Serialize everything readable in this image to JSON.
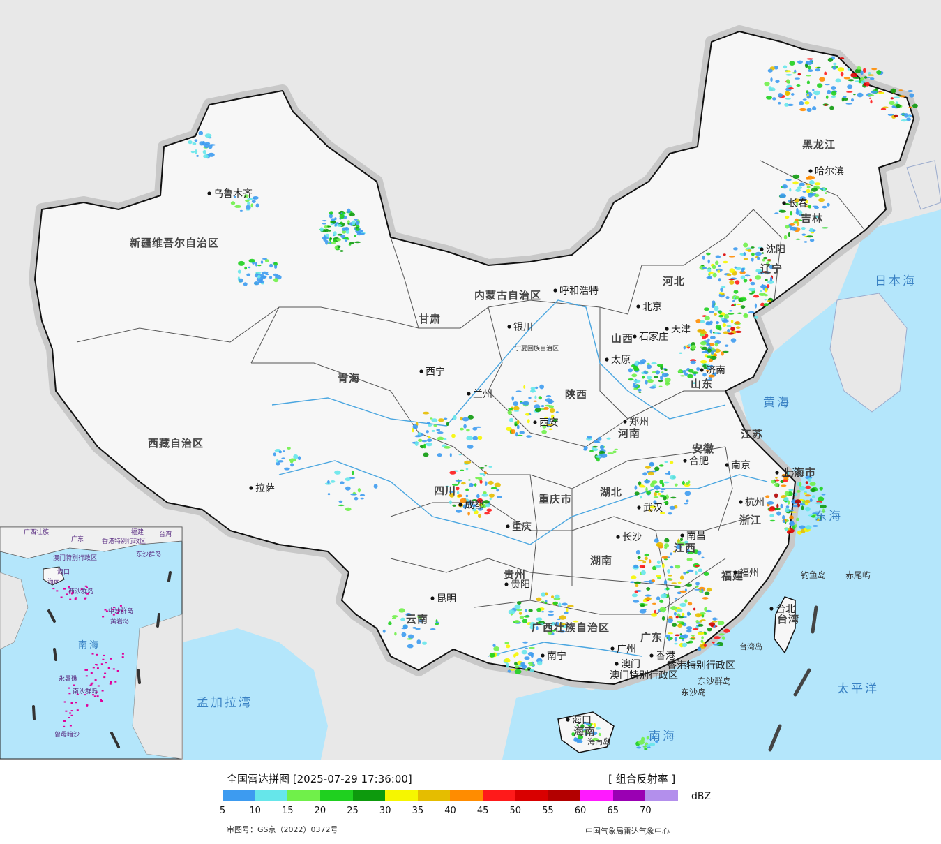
{
  "legend": {
    "title": "全国雷达拼图 [2025-07-29 17:36:00]",
    "product": "[ 组合反射率 ]",
    "unit": "dBZ",
    "ticks": [
      "5",
      "10",
      "15",
      "20",
      "25",
      "30",
      "35",
      "40",
      "45",
      "50",
      "55",
      "60",
      "65",
      "70"
    ],
    "colors": [
      "#3d9bf0",
      "#66e6ea",
      "#70f04a",
      "#1fd01f",
      "#0d9a0d",
      "#f6f600",
      "#e5bd00",
      "#ff8c00",
      "#ff1a1a",
      "#d90000",
      "#b30000",
      "#ff1aff",
      "#9a00b3",
      "#b38fec"
    ]
  },
  "footer": {
    "approval": "审图号：GS京（2022）0372号",
    "agency": "中国气象局雷达气象中心"
  },
  "map": {
    "colors": {
      "sea": "#b4e6fb",
      "land_outside": "#e8e8e8",
      "china": "#f7f7f7",
      "border": "#111111",
      "river": "#4aa6e0"
    },
    "provinces": [
      {
        "name": "新疆维吾尔自治区"
      },
      {
        "name": "西藏自治区"
      },
      {
        "name": "青海"
      },
      {
        "name": "甘肃"
      },
      {
        "name": "内蒙古自治区"
      },
      {
        "name": "黑龙江"
      },
      {
        "name": "吉林"
      },
      {
        "name": "辽宁"
      },
      {
        "name": "四川"
      },
      {
        "name": "陕西"
      },
      {
        "name": "山西"
      },
      {
        "name": "河北"
      },
      {
        "name": "山东"
      },
      {
        "name": "河南"
      },
      {
        "name": "湖北"
      },
      {
        "name": "湖南"
      },
      {
        "name": "江西"
      },
      {
        "name": "安徽"
      },
      {
        "name": "江苏"
      },
      {
        "name": "浙江"
      },
      {
        "name": "福建"
      },
      {
        "name": "广东"
      },
      {
        "name": "广西壮族自治区"
      },
      {
        "name": "云南"
      },
      {
        "name": "贵州"
      },
      {
        "name": "重庆市"
      },
      {
        "name": "上海市"
      },
      {
        "name": "海南"
      },
      {
        "name": "台湾"
      },
      {
        "name": "宁夏回族自治区"
      },
      {
        "name": "香港特别行政区"
      },
      {
        "name": "澳门特别行政区"
      }
    ],
    "cities": [
      {
        "name": "乌鲁木齐"
      },
      {
        "name": "拉萨"
      },
      {
        "name": "西宁"
      },
      {
        "name": "兰州"
      },
      {
        "name": "银川"
      },
      {
        "name": "呼和浩特"
      },
      {
        "name": "北京"
      },
      {
        "name": "天津"
      },
      {
        "name": "石家庄"
      },
      {
        "name": "太原"
      },
      {
        "name": "济南"
      },
      {
        "name": "郑州"
      },
      {
        "name": "西安"
      },
      {
        "name": "成都"
      },
      {
        "name": "重庆"
      },
      {
        "name": "武汉"
      },
      {
        "name": "合肥"
      },
      {
        "name": "南京"
      },
      {
        "name": "上海"
      },
      {
        "name": "杭州"
      },
      {
        "name": "南昌"
      },
      {
        "name": "长沙"
      },
      {
        "name": "福州"
      },
      {
        "name": "台北"
      },
      {
        "name": "贵阳"
      },
      {
        "name": "昆明"
      },
      {
        "name": "南宁"
      },
      {
        "name": "广州"
      },
      {
        "name": "香港"
      },
      {
        "name": "澳门"
      },
      {
        "name": "海口"
      },
      {
        "name": "哈尔滨"
      },
      {
        "name": "长春"
      },
      {
        "name": "沈阳"
      }
    ],
    "seas": [
      {
        "name": "日本海"
      },
      {
        "name": "黄海"
      },
      {
        "name": "东海"
      },
      {
        "name": "太平洋"
      },
      {
        "name": "南海"
      },
      {
        "name": "孟加拉湾"
      }
    ],
    "islands": [
      {
        "name": "钓鱼岛"
      },
      {
        "name": "赤尾屿"
      },
      {
        "name": "东沙群岛"
      },
      {
        "name": "东沙岛"
      },
      {
        "name": "台湾岛"
      },
      {
        "name": "海南岛"
      }
    ],
    "inset": {
      "labels": [
        "广西壮族",
        "广东",
        "福建",
        "台湾",
        "香港特别行政区",
        "澳门特别行政区",
        "东沙群岛",
        "海口",
        "海南",
        "西沙群岛",
        "中沙群岛",
        "黄岩岛",
        "南海",
        "永暑礁",
        "南沙群岛",
        "曾母暗沙"
      ]
    }
  }
}
